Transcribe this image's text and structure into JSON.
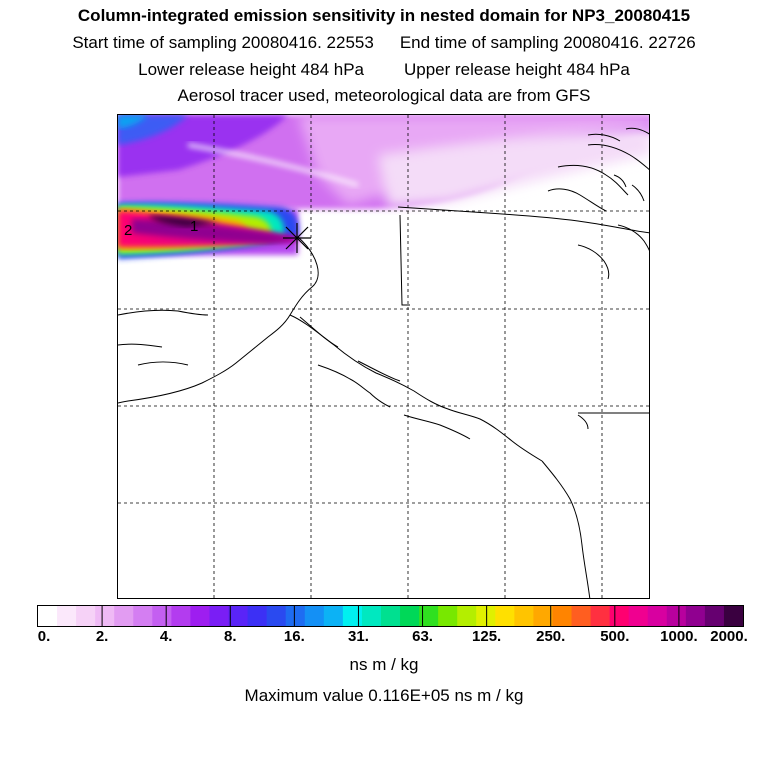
{
  "title": "Column-integrated emission sensitivity in nested domain for NP3_20080415",
  "sampling": {
    "start": "Start time of sampling 20080416. 22553",
    "end": "End time of sampling 20080416. 22726"
  },
  "release": {
    "lower": "Lower release height  484 hPa",
    "upper": "Upper release height  484 hPa"
  },
  "tracer_note": "Aerosol tracer used, meteorological data are from GFS",
  "map": {
    "markers": [
      {
        "label": "2"
      },
      {
        "label": "1"
      }
    ],
    "release_point": "star-marker",
    "gridlines": "dashed"
  },
  "colorbar": {
    "colors": [
      "#ffffff",
      "#fbe8fb",
      "#f6d2f7",
      "#efbaf5",
      "#e29cf2",
      "#d47ef2",
      "#c45ff1",
      "#b33cef",
      "#9e1ef0",
      "#7a1ef5",
      "#5a24f7",
      "#3c30f5",
      "#2a4af0",
      "#1e6cf2",
      "#1490f5",
      "#0cb2f5",
      "#00f0f0",
      "#00e8c0",
      "#00e090",
      "#00d858",
      "#30e020",
      "#78e800",
      "#b4ee00",
      "#e0f000",
      "#ffe000",
      "#ffc400",
      "#ffa800",
      "#ff8400",
      "#ff5e20",
      "#ff3040",
      "#ff0070",
      "#f00090",
      "#d800a0",
      "#b8009e",
      "#900090",
      "#660070",
      "#3a0040"
    ],
    "major_every": 4,
    "tick_labels": [
      "0.",
      "2.",
      "4.",
      "8.",
      "16.",
      "31.",
      "63.",
      "125.",
      "250.",
      "500.",
      "1000.",
      "2000."
    ],
    "units": "ns m / kg"
  },
  "max_value": "Maximum value  0.116E+05 ns m / kg"
}
